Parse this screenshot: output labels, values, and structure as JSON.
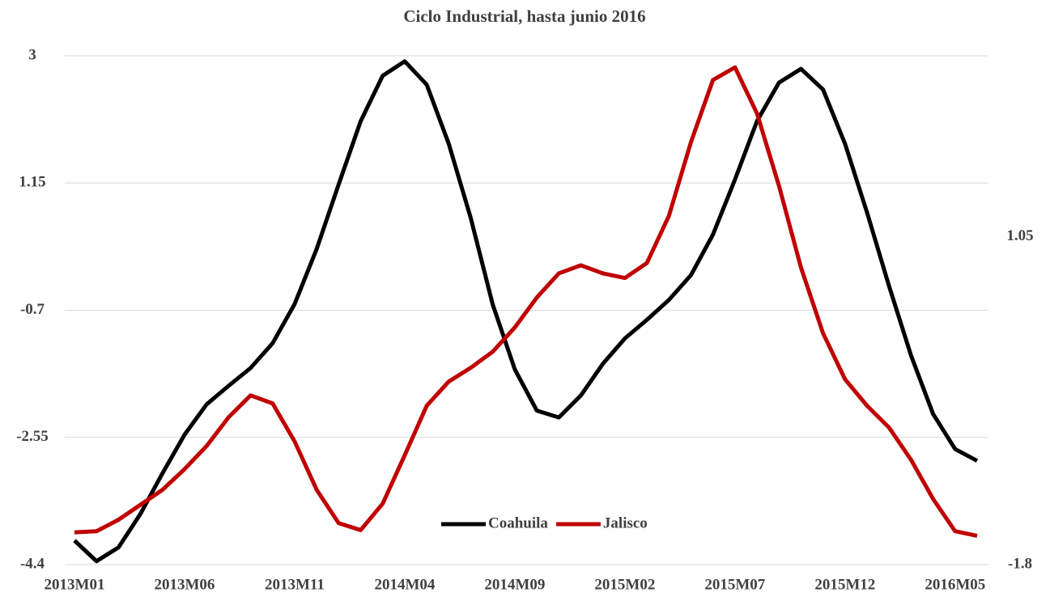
{
  "chart_data": {
    "type": "line",
    "title": "Ciclo Industrial, hasta junio 2016",
    "categories": [
      "2013M01",
      null,
      null,
      null,
      null,
      "2013M06",
      null,
      null,
      null,
      null,
      "2013M11",
      null,
      null,
      null,
      null,
      "2014M04",
      null,
      null,
      null,
      null,
      "2014M09",
      null,
      null,
      null,
      null,
      "2015M02",
      null,
      null,
      null,
      null,
      "2015M07",
      null,
      null,
      null,
      null,
      "2015M12",
      null,
      null,
      null,
      null,
      "2016M05",
      null
    ],
    "series": [
      {
        "name": "Coahuila",
        "color": "#000000",
        "values": [
          -4.05,
          -4.35,
          -4.15,
          -3.66,
          -3.07,
          -2.51,
          -2.07,
          -1.8,
          -1.54,
          -1.18,
          -0.61,
          0.19,
          1.13,
          2.05,
          2.71,
          2.92,
          2.58,
          1.72,
          0.64,
          -0.62,
          -1.56,
          -2.16,
          -2.26,
          -1.94,
          -1.48,
          -1.11,
          -0.84,
          -0.55,
          -0.19,
          0.4,
          1.2,
          2.05,
          2.61,
          2.81,
          2.51,
          1.72,
          0.72,
          -0.35,
          -1.36,
          -2.21,
          -2.72,
          -2.89
        ]
      },
      {
        "name": "Jalisco",
        "color": "#c00000",
        "axis": "y2",
        "values": [
          -1.52,
          -1.51,
          -1.41,
          -1.28,
          -1.15,
          -0.97,
          -0.77,
          -0.52,
          -0.33,
          -0.4,
          -0.73,
          -1.15,
          -1.44,
          -1.5,
          -1.27,
          -0.85,
          -0.42,
          -0.21,
          -0.09,
          0.05,
          0.26,
          0.52,
          0.73,
          0.8,
          0.73,
          0.69,
          0.82,
          1.23,
          1.87,
          2.41,
          2.52,
          2.12,
          1.49,
          0.78,
          0.21,
          -0.19,
          -0.42,
          -0.61,
          -0.89,
          -1.23,
          -1.51,
          -1.55
        ]
      }
    ],
    "ylim": [
      -4.4,
      3
    ],
    "yticks": [
      -4.4,
      -2.55,
      -0.7,
      1.15,
      3
    ],
    "y2lim": [
      -1.8,
      2.62
    ],
    "y2ticks": [
      -1.8,
      1.05
    ],
    "grid": true,
    "legend": "lower center"
  }
}
